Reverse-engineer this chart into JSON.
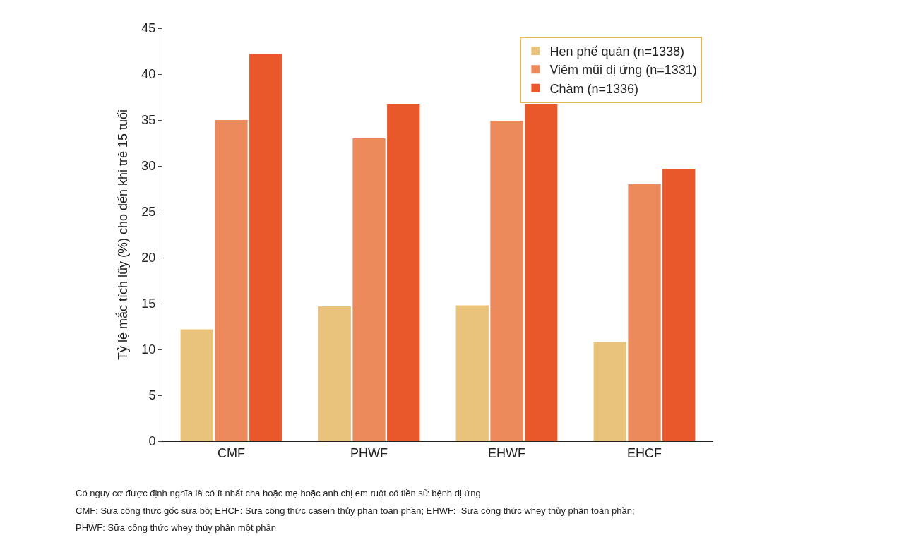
{
  "chart_data": {
    "type": "bar",
    "ylabel": "Tỷ lệ mắc tích lũy (%) cho đến khi trẻ 15 tuổi",
    "categories": [
      "CMF",
      "PHWF",
      "EHWF",
      "EHCF"
    ],
    "series": [
      {
        "name": "Hen phế quản (n=1338)",
        "color": "#e9c37c",
        "values": [
          12.2,
          14.7,
          14.8,
          10.8
        ]
      },
      {
        "name": "Viêm mũi dị ứng (n=1331)",
        "color": "#ec8a5c",
        "values": [
          35.0,
          33.0,
          34.9,
          28.0
        ]
      },
      {
        "name": "Chàm (n=1336)",
        "color": "#e8582a",
        "values": [
          42.2,
          36.7,
          36.7,
          29.7
        ]
      }
    ],
    "ylim": [
      0,
      45
    ],
    "yticks": [
      0,
      5,
      10,
      15,
      20,
      25,
      30,
      35,
      40,
      45
    ],
    "grid": false,
    "legend": "top right",
    "annotations": [
      "Có nguy cơ được định nghĩa là có ít nhất cha hoặc mẹ hoặc anh chị em ruột có tiền sử bệnh dị ứng",
      "CMF: Sữa công thức gốc sữa bò; EHCF: Sữa công thức casein thủy phân toàn phần; EHWF:  Sữa công thức whey thủy phân toàn phần;",
      "PHWF: Sữa công thức whey thủy phân một phần"
    ]
  }
}
